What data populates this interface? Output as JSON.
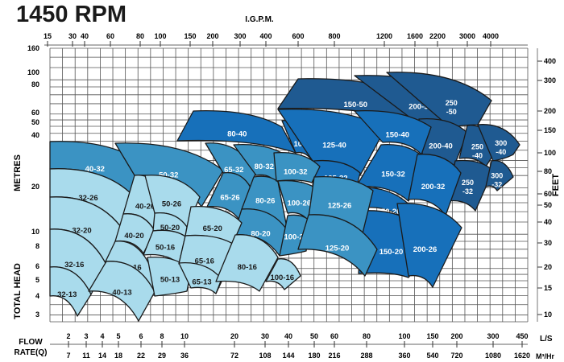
{
  "title": "1450 RPM",
  "colors": {
    "light": "#a9dbec",
    "mid": "#3b93c3",
    "blue": "#1770ba",
    "dark": "#1f5a91",
    "grid": "#555555",
    "outline": "#1a1a1a"
  },
  "chart_data": {
    "type": "region",
    "grid": true,
    "top_axis": {
      "label": "I.G.P.M.",
      "ticks": [
        "15",
        "30",
        "40",
        "60",
        "80",
        "100",
        "150",
        "200",
        "300",
        "400",
        "600",
        "800",
        "1200",
        "1600",
        "2200",
        "3000",
        "4000"
      ]
    },
    "left_axis": {
      "label": "METRES",
      "label2": "TOTAL HEAD",
      "scale": "log",
      "ticks": [
        "160",
        "100",
        "80",
        "60",
        "50",
        "40",
        "20",
        "10",
        "8",
        "6",
        "5",
        "4",
        "3"
      ]
    },
    "right_axis": {
      "label": "FEET",
      "scale": "log",
      "ticks": [
        "400",
        "300",
        "200",
        "150",
        "100",
        "80",
        "60",
        "50",
        "40",
        "30",
        "20",
        "15",
        "10"
      ]
    },
    "bottom_axis": {
      "label": "FLOW",
      "label2": "RATE(Q)",
      "unit_ls": "L/S",
      "unit_m3": "M³/Hr",
      "ticks_ls": [
        "2",
        "3",
        "4",
        "5",
        "6",
        "8",
        "10",
        "20",
        "30",
        "40",
        "50",
        "60",
        "80",
        "100",
        "150",
        "200",
        "300",
        "450"
      ],
      "ticks_m3": [
        "7",
        "11",
        "14",
        "18",
        "22",
        "29",
        "36",
        "72",
        "108",
        "144",
        "180",
        "216",
        "288",
        "360",
        "540",
        "720",
        "1080",
        "1620"
      ]
    },
    "regions": [
      {
        "label": "150-50",
        "tier": "dark"
      },
      {
        "label": "200-50",
        "tier": "dark"
      },
      {
        "label": "250 -50",
        "tier": "dark"
      },
      {
        "label": "200-40",
        "tier": "dark"
      },
      {
        "label": "250 -40",
        "tier": "dark"
      },
      {
        "label": "300 -40",
        "tier": "dark"
      },
      {
        "label": "250 -32",
        "tier": "dark"
      },
      {
        "label": "300 -32",
        "tier": "dark"
      },
      {
        "label": "80-40",
        "tier": "blue"
      },
      {
        "label": "100-40",
        "tier": "blue"
      },
      {
        "label": "125-40",
        "tier": "blue"
      },
      {
        "label": "150-40",
        "tier": "blue"
      },
      {
        "label": "125-32",
        "tier": "blue"
      },
      {
        "label": "150-32",
        "tier": "blue"
      },
      {
        "label": "200-32",
        "tier": "blue"
      },
      {
        "label": "150-26",
        "tier": "blue"
      },
      {
        "label": "150-20",
        "tier": "blue"
      },
      {
        "label": "200-26",
        "tier": "blue"
      },
      {
        "label": "40-32",
        "tier": "mid"
      },
      {
        "label": "50-32",
        "tier": "mid"
      },
      {
        "label": "65-32",
        "tier": "mid"
      },
      {
        "label": "65-26",
        "tier": "mid"
      },
      {
        "label": "80-32",
        "tier": "mid"
      },
      {
        "label": "80-26",
        "tier": "mid"
      },
      {
        "label": "80-20",
        "tier": "mid"
      },
      {
        "label": "100-32",
        "tier": "mid"
      },
      {
        "label": "100-26",
        "tier": "mid"
      },
      {
        "label": "100-20",
        "tier": "mid"
      },
      {
        "label": "125-26",
        "tier": "mid"
      },
      {
        "label": "125-20",
        "tier": "mid"
      },
      {
        "label": "32-26",
        "tier": "light"
      },
      {
        "label": "32-20",
        "tier": "light"
      },
      {
        "label": "32-16",
        "tier": "light"
      },
      {
        "label": "32-13",
        "tier": "light"
      },
      {
        "label": "40-26",
        "tier": "light"
      },
      {
        "label": "40-20",
        "tier": "light"
      },
      {
        "label": "40-16",
        "tier": "light"
      },
      {
        "label": "40-13",
        "tier": "light"
      },
      {
        "label": "50-26",
        "tier": "light"
      },
      {
        "label": "50-20",
        "tier": "light"
      },
      {
        "label": "50-16",
        "tier": "light"
      },
      {
        "label": "50-13",
        "tier": "light"
      },
      {
        "label": "65-20",
        "tier": "light"
      },
      {
        "label": "65-16",
        "tier": "light"
      },
      {
        "label": "65-13",
        "tier": "light"
      },
      {
        "label": "80-16",
        "tier": "light"
      },
      {
        "label": "100-16",
        "tier": "light"
      }
    ]
  }
}
